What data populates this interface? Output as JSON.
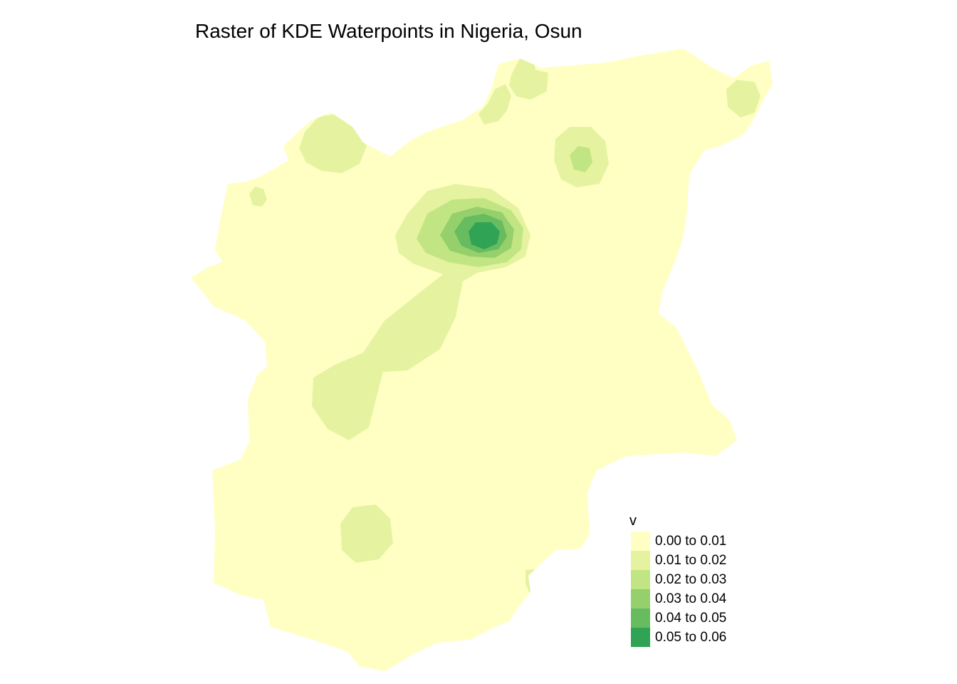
{
  "title": "Raster of KDE Waterpoints in Nigeria, Osun",
  "legend": {
    "title": "v",
    "placement": "bottom-right",
    "classes": [
      {
        "label": "0.00 to 0.01",
        "color": "#FFFFC4"
      },
      {
        "label": "0.01 to 0.02",
        "color": "#E5F3A1"
      },
      {
        "label": "0.02 to 0.03",
        "color": "#C2E584"
      },
      {
        "label": "0.03 to 0.04",
        "color": "#96D06C"
      },
      {
        "label": "0.04 to 0.05",
        "color": "#67BC5F"
      },
      {
        "label": "0.05 to 0.06",
        "color": "#30A354"
      }
    ]
  }
}
